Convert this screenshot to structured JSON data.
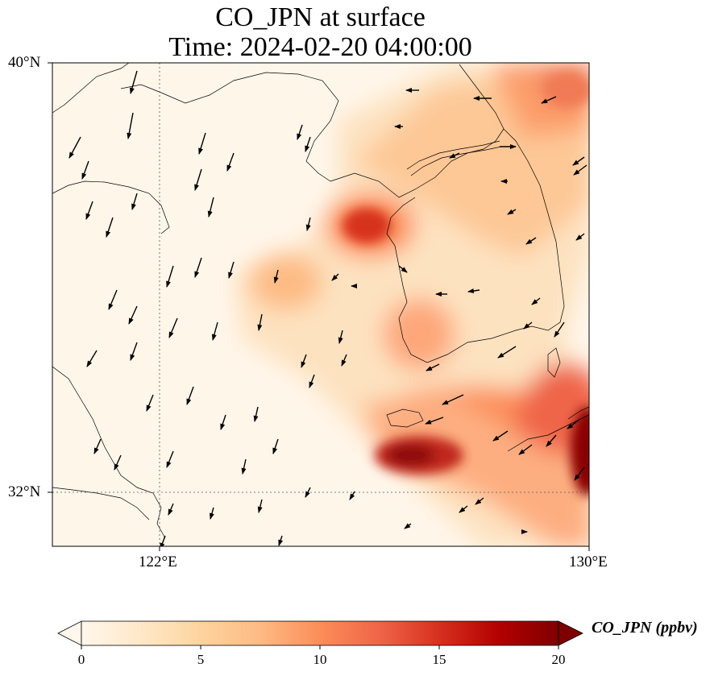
{
  "title": {
    "line1": "CO_JPN at surface",
    "line2": "Time: 2024-02-20 04:00:00"
  },
  "axes": {
    "lat_labels": [
      "40°N",
      "32°N"
    ],
    "lon_labels": [
      "122°E",
      "130°E"
    ],
    "extent": {
      "lon": [
        120,
        130
      ],
      "lat": [
        31,
        40
      ]
    }
  },
  "colorbar": {
    "label": "CO_JPN (ppbv)",
    "ticks": [
      "0",
      "5",
      "10",
      "15",
      "20"
    ],
    "range": [
      0,
      20
    ],
    "extend": "both",
    "colormap": "OrRd",
    "colors": [
      "#fff7ec",
      "#fee8c8",
      "#fdd49e",
      "#fdbb84",
      "#fc8d59",
      "#ef6548",
      "#d7301f",
      "#b30000",
      "#7f0000"
    ]
  },
  "chart_data": {
    "type": "heatmap",
    "variable": "CO_JPN",
    "units": "ppbv",
    "hotspots": [
      {
        "lon": 126.2,
        "lat": 37.5,
        "value": 17
      },
      {
        "lon": 128.5,
        "lat": 39.6,
        "value": 11
      },
      {
        "lon": 127.3,
        "lat": 32.7,
        "value": 19
      },
      {
        "lon": 129.9,
        "lat": 33.0,
        "value": 20
      },
      {
        "lon": 124.3,
        "lat": 36.6,
        "value": 7
      },
      {
        "lon": 126.9,
        "lat": 35.2,
        "value": 9
      }
    ]
  }
}
